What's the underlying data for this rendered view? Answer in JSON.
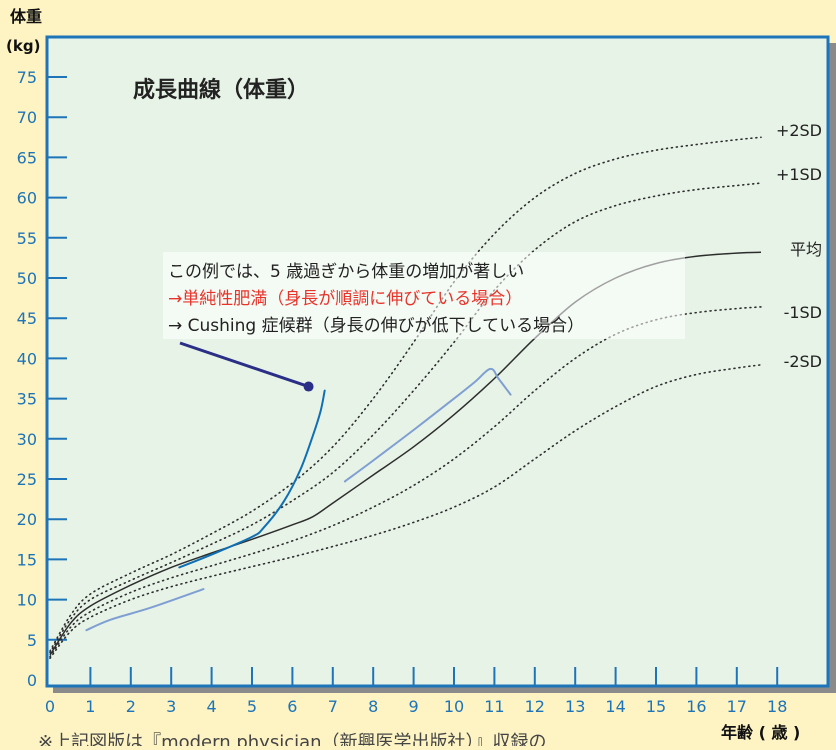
{
  "chart_data": {
    "type": "line",
    "title": "成長曲線（体重）",
    "ylabel_top": "体重",
    "ylabel_unit": "(kg)",
    "xlabel": "年齢 ( 歳 )",
    "xlim": [
      0,
      19
    ],
    "ylim": [
      0,
      80
    ],
    "x_ticks": [
      0,
      1,
      2,
      3,
      4,
      5,
      6,
      7,
      8,
      9,
      10,
      11,
      12,
      13,
      14,
      15,
      16,
      17,
      18
    ],
    "y_ticks": [
      0,
      5,
      10,
      15,
      20,
      25,
      30,
      35,
      40,
      45,
      50,
      55,
      60,
      65,
      70,
      75
    ],
    "reference_curves": [
      {
        "name": "+2SD",
        "style": "dotted",
        "points": [
          [
            0,
            3.6
          ],
          [
            0.5,
            8.0
          ],
          [
            1,
            10.7
          ],
          [
            2,
            13.3
          ],
          [
            3,
            15.6
          ],
          [
            4,
            18.2
          ],
          [
            5,
            21.0
          ],
          [
            6,
            24.5
          ],
          [
            7,
            29.0
          ],
          [
            8,
            35.0
          ],
          [
            9,
            42.0
          ],
          [
            10,
            49.5
          ],
          [
            11,
            55.5
          ],
          [
            12,
            60.0
          ],
          [
            13,
            63.0
          ],
          [
            14,
            64.8
          ],
          [
            15,
            65.9
          ],
          [
            16,
            66.6
          ],
          [
            17,
            67.2
          ],
          [
            17.6,
            67.5
          ]
        ]
      },
      {
        "name": "+1SD",
        "style": "dotted",
        "points": [
          [
            0,
            3.4
          ],
          [
            0.5,
            7.5
          ],
          [
            1,
            10.0
          ],
          [
            2,
            12.4
          ],
          [
            3,
            14.6
          ],
          [
            4,
            16.9
          ],
          [
            5,
            19.3
          ],
          [
            6,
            22.3
          ],
          [
            7,
            25.8
          ],
          [
            8,
            30.5
          ],
          [
            9,
            36.0
          ],
          [
            10,
            42.0
          ],
          [
            11,
            48.5
          ],
          [
            12,
            53.5
          ],
          [
            13,
            57.0
          ],
          [
            14,
            59.0
          ],
          [
            15,
            60.2
          ],
          [
            16,
            61.0
          ],
          [
            17,
            61.5
          ],
          [
            17.6,
            61.8
          ]
        ]
      },
      {
        "name": "平均",
        "style": "solid",
        "points": [
          [
            0,
            3.1
          ],
          [
            0.5,
            7.0
          ],
          [
            1,
            9.2
          ],
          [
            2,
            11.8
          ],
          [
            3,
            14.0
          ],
          [
            4,
            15.8
          ],
          [
            5,
            17.5
          ],
          [
            6,
            19.3
          ],
          [
            6.5,
            20.3
          ],
          [
            7,
            22.0
          ],
          [
            8,
            25.5
          ],
          [
            9,
            29.0
          ],
          [
            10,
            33.0
          ],
          [
            11,
            37.5
          ],
          [
            12,
            42.5
          ],
          [
            13,
            47.0
          ],
          [
            14,
            50.0
          ],
          [
            15,
            51.8
          ],
          [
            16,
            52.7
          ],
          [
            17,
            53.1
          ],
          [
            17.6,
            53.2
          ]
        ]
      },
      {
        "name": "-1SD",
        "style": "dotted",
        "points": [
          [
            0,
            2.9
          ],
          [
            0.5,
            6.5
          ],
          [
            1,
            8.5
          ],
          [
            2,
            10.9
          ],
          [
            3,
            12.7
          ],
          [
            4,
            14.2
          ],
          [
            5,
            15.7
          ],
          [
            6,
            17.3
          ],
          [
            7,
            19.2
          ],
          [
            8,
            21.5
          ],
          [
            9,
            24.2
          ],
          [
            10,
            27.5
          ],
          [
            11,
            31.5
          ],
          [
            12,
            36.0
          ],
          [
            13,
            40.0
          ],
          [
            14,
            43.0
          ],
          [
            15,
            44.8
          ],
          [
            16,
            45.7
          ],
          [
            17,
            46.2
          ],
          [
            17.6,
            46.4
          ]
        ]
      },
      {
        "name": "-2SD",
        "style": "dotted",
        "points": [
          [
            0,
            2.7
          ],
          [
            0.5,
            6.0
          ],
          [
            1,
            7.8
          ],
          [
            2,
            10.0
          ],
          [
            3,
            11.6
          ],
          [
            4,
            12.9
          ],
          [
            5,
            14.1
          ],
          [
            6,
            15.3
          ],
          [
            7,
            16.6
          ],
          [
            8,
            18.0
          ],
          [
            9,
            19.6
          ],
          [
            10,
            21.5
          ],
          [
            11,
            24.0
          ],
          [
            12,
            27.5
          ],
          [
            13,
            31.0
          ],
          [
            14,
            34.0
          ],
          [
            15,
            36.5
          ],
          [
            16,
            38.0
          ],
          [
            17,
            38.8
          ],
          [
            17.6,
            39.2
          ]
        ]
      }
    ],
    "case_curves": [
      {
        "color": "#0e6fb4",
        "width": 2,
        "points": [
          [
            3.2,
            14.0
          ],
          [
            4,
            15.6
          ],
          [
            5,
            17.8
          ],
          [
            5.3,
            19.0
          ],
          [
            5.8,
            22.3
          ],
          [
            6.2,
            26.2
          ],
          [
            6.5,
            30.3
          ],
          [
            6.7,
            33.5
          ],
          [
            6.8,
            36.0
          ]
        ]
      },
      {
        "color": "#7f9fd3",
        "width": 2,
        "points": [
          [
            7.3,
            24.7
          ],
          [
            8,
            27.3
          ],
          [
            9,
            31.1
          ],
          [
            10,
            35.0
          ],
          [
            10.5,
            37.0
          ],
          [
            10.9,
            38.7
          ],
          [
            11.1,
            37.5
          ],
          [
            11.4,
            35.5
          ]
        ]
      },
      {
        "color": "#7f9fd3",
        "width": 2,
        "points": [
          [
            0.9,
            6.2
          ],
          [
            1.5,
            7.5
          ],
          [
            2.5,
            9.0
          ],
          [
            3.8,
            11.3
          ]
        ]
      }
    ],
    "series_labels": [
      "+2SD",
      "+1SD",
      "平均",
      "-1SD",
      "-2SD"
    ],
    "annotation": {
      "line1": "この例では、5 歳過ぎから体重の増加が著しい",
      "line2": "→単純性肥満（身長が順調に伸びている場合）",
      "line3": "→ Cushing 症候群（身長の伸びが低下している場合）",
      "line2_color": "#e8332a",
      "pointer_color": "#2a2e86",
      "pointer_target": [
        6.4,
        36.5
      ]
    }
  },
  "footnote": "※上記図版は『modern physician（新興医学出版社）』収録の",
  "colors": {
    "page_bg": "#fdf3c3",
    "plot_bg": "#e7f3e7",
    "frame": "#1d74b8",
    "label_blue": "#1d74b8",
    "curve_black": "#2d2d2d"
  }
}
